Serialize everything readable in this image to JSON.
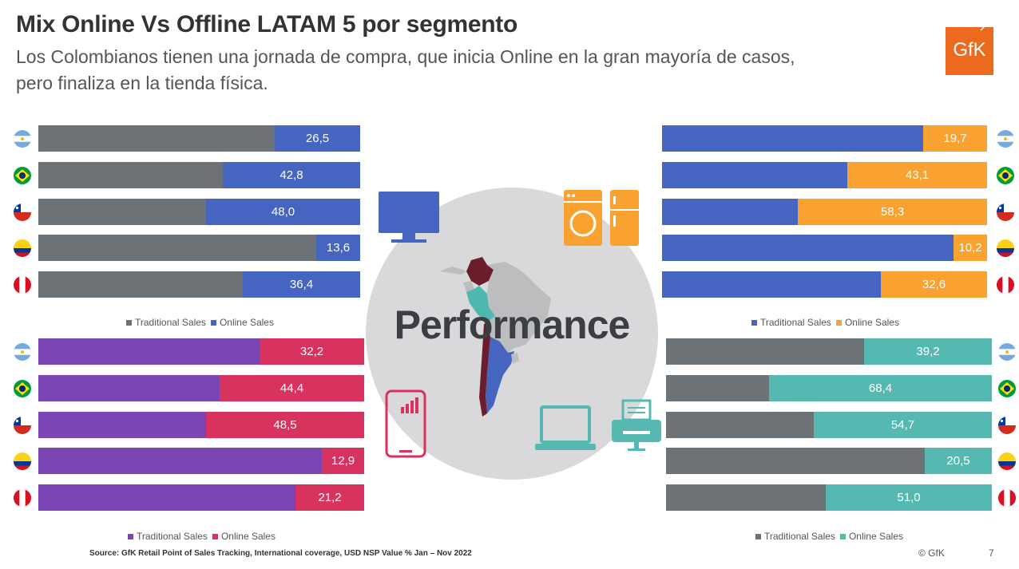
{
  "header": {
    "title": "Mix Online Vs Offline LATAM 5 por segmento",
    "subtitle": "Los Colombianos tienen una jornada de compra, que inicia Online en la gran mayoría de casos, pero finaliza en la tienda física.",
    "logo_text": "GfK"
  },
  "center": {
    "label": "Performance"
  },
  "footer": {
    "source": "Source: GfK Retail Point of Sales Tracking, International coverage, USD NSP Value % Jan – Nov 2022",
    "copyright": "© GfK",
    "page_number": "7"
  },
  "chart_data": [
    {
      "type": "bar",
      "stacked": true,
      "orientation": "horizontal",
      "segment_icon": "monitor-icon",
      "categories": [
        "Argentina",
        "Brazil",
        "Chile",
        "Colombia",
        "Peru"
      ],
      "category_icons": [
        "argentina-flag-icon",
        "brazil-flag-icon",
        "chile-flag-icon",
        "colombia-flag-icon",
        "peru-flag-icon"
      ],
      "series": [
        {
          "name": "Traditional Sales",
          "color": "#6d7276",
          "values": [
            73.5,
            57.2,
            52.0,
            86.4,
            63.6
          ]
        },
        {
          "name": "Online Sales",
          "color": "#4565c0",
          "values": [
            26.5,
            42.8,
            48.0,
            13.6,
            36.4
          ]
        }
      ],
      "labels": [
        "26,5",
        "42,8",
        "48,0",
        "13,6",
        "36,4"
      ],
      "xlim": [
        0,
        100
      ],
      "legend": "bottom"
    },
    {
      "type": "bar",
      "stacked": true,
      "orientation": "horizontal",
      "segment_icon": "washer-fridge-icon",
      "categories": [
        "Argentina",
        "Brazil",
        "Chile",
        "Colombia",
        "Peru"
      ],
      "category_icons": [
        "argentina-flag-icon",
        "brazil-flag-icon",
        "chile-flag-icon",
        "colombia-flag-icon",
        "peru-flag-icon"
      ],
      "series": [
        {
          "name": "Traditional Sales",
          "color": "#4565c0",
          "values": [
            80.3,
            56.9,
            41.7,
            89.8,
            67.4
          ]
        },
        {
          "name": "Online Sales",
          "color": "#f9a232",
          "values": [
            19.7,
            43.1,
            58.3,
            10.2,
            32.6
          ]
        }
      ],
      "labels": [
        "19,7",
        "43,1",
        "58,3",
        "10,2",
        "32,6"
      ],
      "xlim": [
        0,
        100
      ],
      "legend": "bottom"
    },
    {
      "type": "bar",
      "stacked": true,
      "orientation": "horizontal",
      "segment_icon": "smartphone-icon",
      "categories": [
        "Argentina",
        "Brazil",
        "Chile",
        "Colombia",
        "Peru"
      ],
      "category_icons": [
        "argentina-flag-icon",
        "brazil-flag-icon",
        "chile-flag-icon",
        "colombia-flag-icon",
        "peru-flag-icon"
      ],
      "series": [
        {
          "name": "Traditional Sales",
          "color": "#7b45b5",
          "values": [
            67.8,
            55.6,
            51.5,
            87.1,
            78.8
          ]
        },
        {
          "name": "Online Sales",
          "color": "#d8325e",
          "values": [
            32.2,
            44.4,
            48.5,
            12.9,
            21.2
          ]
        }
      ],
      "labels": [
        "32,2",
        "44,4",
        "48,5",
        "12,9",
        "21,2"
      ],
      "xlim": [
        0,
        100
      ],
      "legend": "bottom"
    },
    {
      "type": "bar",
      "stacked": true,
      "orientation": "horizontal",
      "segment_icon": "laptop-printer-icon",
      "categories": [
        "Argentina",
        "Brazil",
        "Chile",
        "Colombia",
        "Peru"
      ],
      "category_icons": [
        "argentina-flag-icon",
        "brazil-flag-icon",
        "chile-flag-icon",
        "colombia-flag-icon",
        "peru-flag-icon"
      ],
      "series": [
        {
          "name": "Traditional Sales",
          "color": "#6d7276",
          "values": [
            60.8,
            31.6,
            45.3,
            79.5,
            49.0
          ]
        },
        {
          "name": "Online Sales",
          "color": "#55b9b2",
          "values": [
            39.2,
            68.4,
            54.7,
            20.5,
            51.0
          ]
        }
      ],
      "labels": [
        "39,2",
        "68,4",
        "54,7",
        "20,5",
        "51,0"
      ],
      "xlim": [
        0,
        100
      ],
      "legend": "bottom"
    }
  ]
}
